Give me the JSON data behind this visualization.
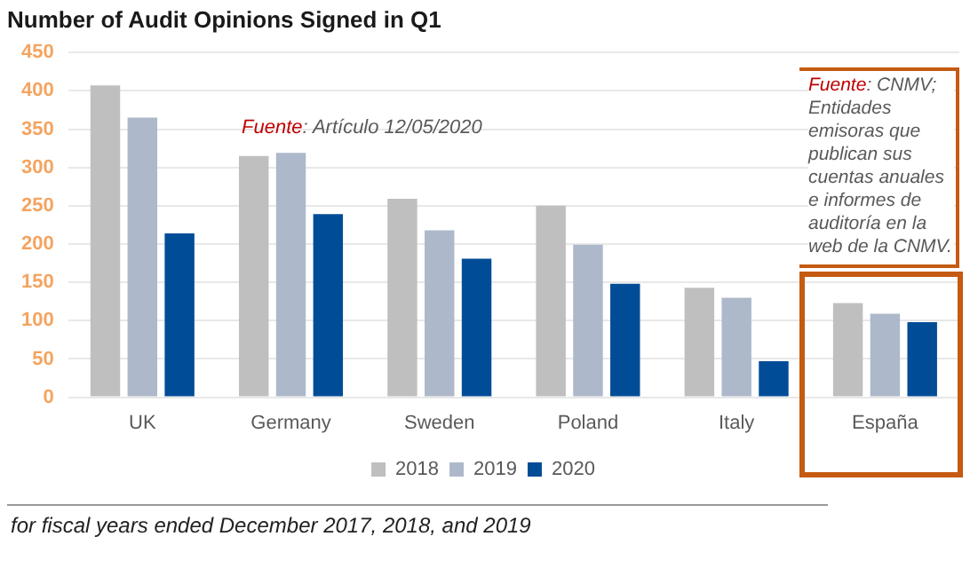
{
  "chart_data": {
    "type": "bar",
    "title": "Number of Audit Opinions Signed in Q1",
    "categories": [
      "UK",
      "Germany",
      "Sweden",
      "Poland",
      "Italy",
      "España"
    ],
    "series": [
      {
        "name": "2018",
        "color": "#bfbfbf",
        "values": [
          407,
          315,
          259,
          250,
          143,
          123
        ]
      },
      {
        "name": "2019",
        "color": "#adb9ca",
        "values": [
          365,
          319,
          218,
          199,
          130,
          109
        ]
      },
      {
        "name": "2020",
        "color": "#004c97",
        "values": [
          214,
          239,
          181,
          148,
          47,
          98
        ]
      }
    ],
    "ylim": [
      0,
      450
    ],
    "yticks": [
      0,
      50,
      100,
      150,
      200,
      250,
      300,
      350,
      400,
      450
    ],
    "grid": "y",
    "legend": "bottom",
    "annotations": [
      "Fuente: Artículo 12/05/2020",
      "Fuente: CNMV; Entidades emisoras que publican sus cuentas anuales e informes de auditoría en la web de la CNMV.",
      "for fiscal years ended December 2017, 2018, and 2019"
    ]
  }
}
